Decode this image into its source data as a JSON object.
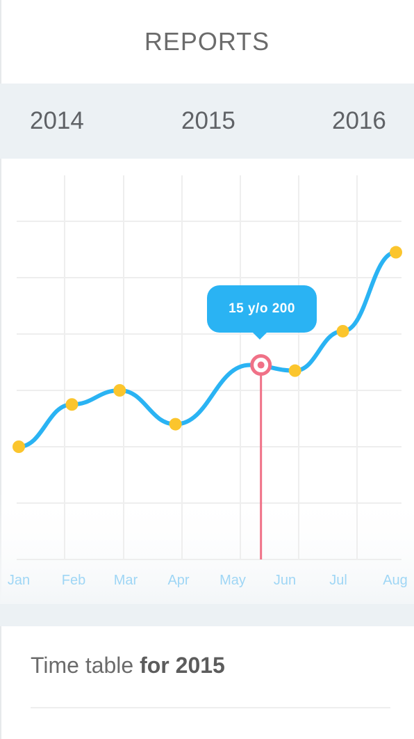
{
  "header": {
    "title": "REPORTS"
  },
  "year_tabs": [
    {
      "label": "2014"
    },
    {
      "label": "2015"
    },
    {
      "label": "2016"
    }
  ],
  "tooltip": {
    "text": "15 y/o 200"
  },
  "timetable": {
    "label_regular": "Time table ",
    "label_bold": "for 2015"
  },
  "colors": {
    "line": "#2ab3f3",
    "point": "#fbc52d",
    "highlight": "#f07187",
    "month_label": "#9fd6f5",
    "grid": "#eeeeee"
  },
  "chart_data": {
    "type": "line",
    "categories": [
      "Jan",
      "Feb",
      "Mar",
      "Apr",
      "May",
      "Jun",
      "Jul",
      "Aug"
    ],
    "x_positions": [
      0,
      1,
      1.9,
      2.95,
      4.35,
      5.2,
      6.1,
      7.1
    ],
    "values": [
      2.0,
      2.75,
      3.0,
      2.4,
      3.45,
      3.35,
      4.05,
      5.45
    ],
    "selected_index": 4,
    "ylim": [
      0,
      6
    ],
    "grid": true,
    "title": "",
    "xlabel": "",
    "ylabel": ""
  }
}
